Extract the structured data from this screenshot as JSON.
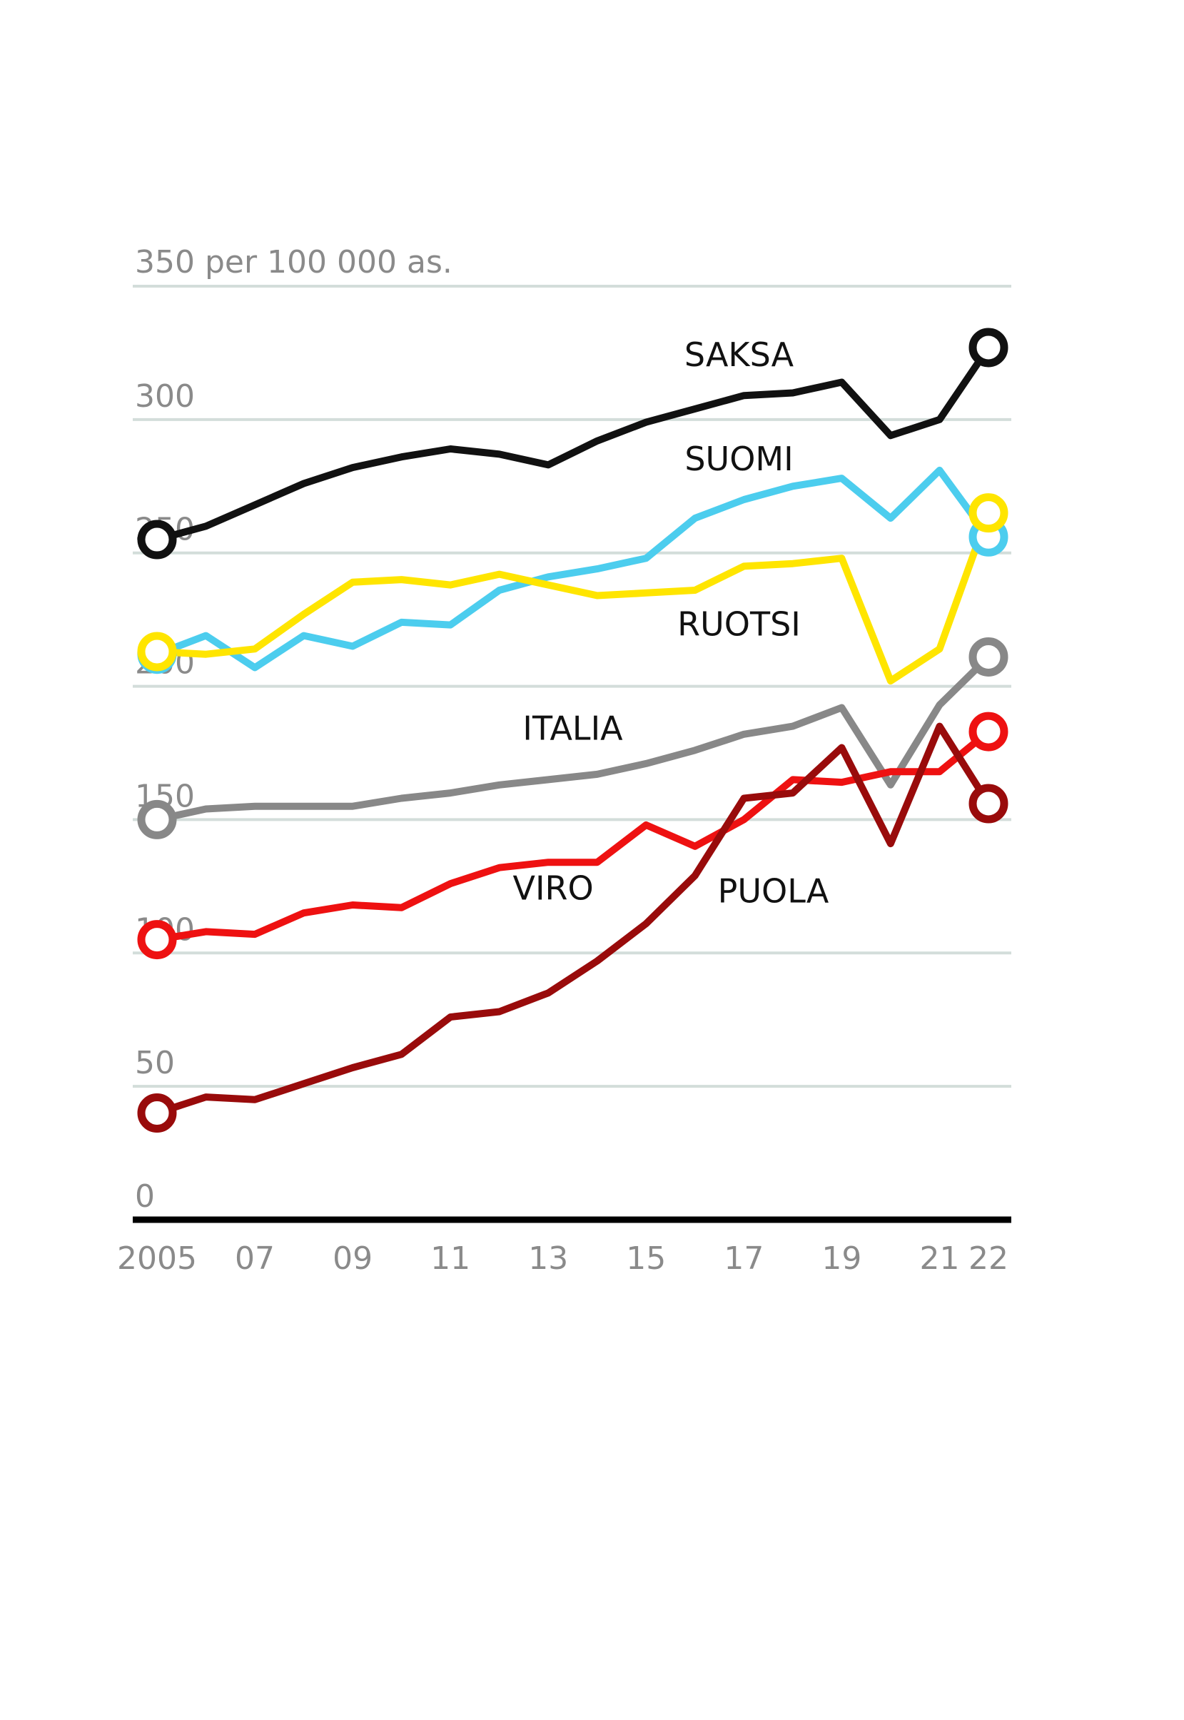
{
  "chart_data": {
    "type": "line",
    "unit_label": "350 per 100 000 as.",
    "ylim": [
      0,
      350
    ],
    "y_ticks": [
      0,
      50,
      100,
      150,
      200,
      250,
      300
    ],
    "y_tick_labels": [
      "0",
      "50",
      "100",
      "150",
      "200",
      "250",
      "300"
    ],
    "x": [
      2005,
      2006,
      2007,
      2008,
      2009,
      2010,
      2011,
      2012,
      2013,
      2014,
      2015,
      2016,
      2017,
      2018,
      2019,
      2020,
      2021,
      2022
    ],
    "x_ticks": [
      2005,
      2007,
      2009,
      2011,
      2013,
      2015,
      2017,
      2019,
      2021,
      2022
    ],
    "x_tick_labels": [
      "2005",
      "07",
      "09",
      "11",
      "13",
      "15",
      "17",
      "19",
      "21",
      "22"
    ],
    "grid": true,
    "series": [
      {
        "name": "SAKSA",
        "color": "#111111",
        "values": [
          255,
          260,
          268,
          276,
          282,
          286,
          289,
          287,
          283,
          292,
          299,
          304,
          309,
          310,
          314,
          294,
          300,
          327
        ]
      },
      {
        "name": "SUOMI",
        "color": "#4ccdee",
        "values": [
          212,
          219,
          207,
          219,
          215,
          224,
          223,
          236,
          241,
          244,
          248,
          263,
          270,
          275,
          278,
          263,
          281,
          256
        ]
      },
      {
        "name": "RUOTSI",
        "color": "#ffe500",
        "values": [
          213,
          212,
          214,
          227,
          239,
          240,
          238,
          242,
          238,
          234,
          235,
          236,
          245,
          246,
          248,
          202,
          214,
          265
        ]
      },
      {
        "name": "ITALIA",
        "color": "#888888",
        "values": [
          150,
          154,
          155,
          155,
          155,
          158,
          160,
          163,
          165,
          167,
          171,
          176,
          182,
          185,
          192,
          163,
          193,
          211
        ]
      },
      {
        "name": "VIRO",
        "color": "#ee1111",
        "values": [
          105,
          108,
          107,
          115,
          118,
          117,
          126,
          132,
          134,
          134,
          148,
          140,
          150,
          165,
          164,
          168,
          168,
          183
        ]
      },
      {
        "name": "PUOLA",
        "color": "#990b0b",
        "values": [
          40,
          46,
          45,
          51,
          57,
          62,
          76,
          78,
          85,
          97,
          111,
          129,
          158,
          160,
          177,
          141,
          185,
          156
        ]
      }
    ]
  }
}
